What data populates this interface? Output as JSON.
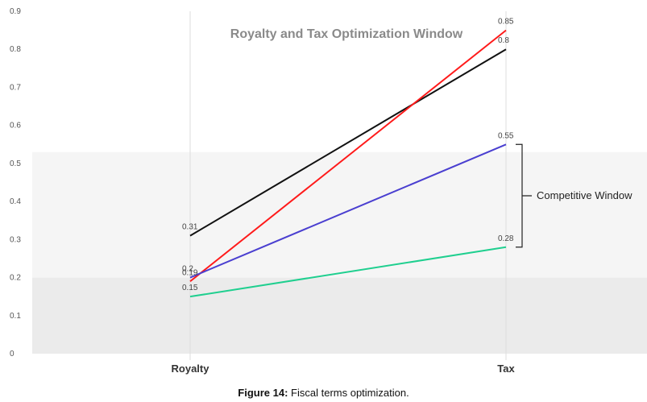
{
  "chart_data": {
    "type": "line",
    "title": "Royalty and Tax Optimization Window",
    "categories": [
      "Royalty",
      "Tax"
    ],
    "ylim": [
      0,
      0.9
    ],
    "yticks": [
      "0",
      "0.1",
      "0.2",
      "0.3",
      "0.4",
      "0.5",
      "0.6",
      "0.7",
      "0.8",
      "0.9"
    ],
    "grid": false,
    "series": [
      {
        "values": [
          0.31,
          0.8
        ],
        "labels": [
          "0.31",
          "0.8"
        ],
        "color": "#111111"
      },
      {
        "values": [
          0.19,
          0.85
        ],
        "labels": [
          "0.19",
          "0.85"
        ],
        "color": "#ff1a1a"
      },
      {
        "values": [
          0.2,
          0.55
        ],
        "labels": [
          "0.2",
          "0.55"
        ],
        "color": "#4a3fd0"
      },
      {
        "values": [
          0.15,
          0.28
        ],
        "labels": [
          "0.15",
          "0.28"
        ],
        "color": "#1fcf8f"
      }
    ],
    "bands": [
      {
        "from": 0,
        "to": 0.2,
        "color": "#ebebeb"
      },
      {
        "from": 0.2,
        "to": 0.53,
        "color": "#f5f5f5"
      }
    ],
    "annotation": {
      "text": "Competitive Window",
      "from": 0.28,
      "to": 0.55
    }
  },
  "caption": {
    "label": "Figure 14:",
    "text": "Fiscal terms optimization."
  }
}
